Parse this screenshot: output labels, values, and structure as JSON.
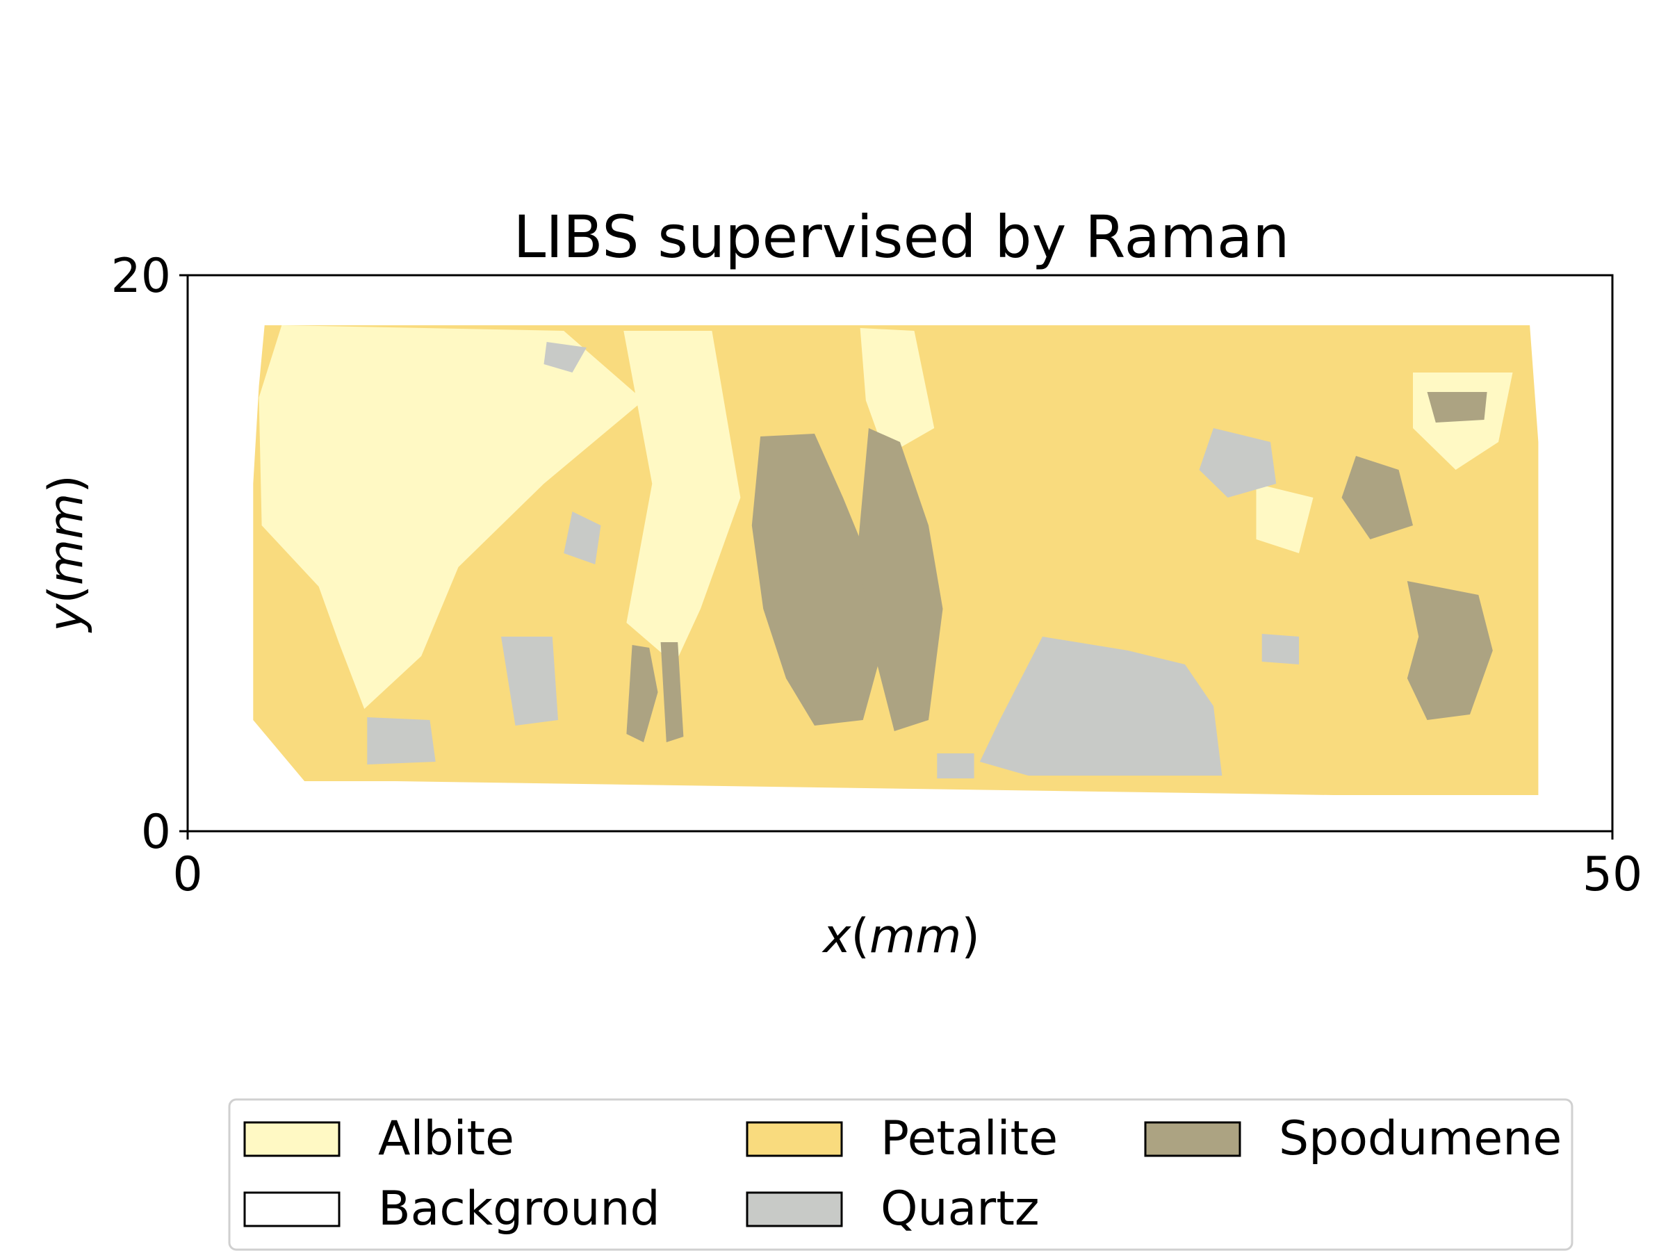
{
  "chart_data": {
    "type": "heatmap",
    "title": "LIBS supervised by Raman",
    "xlabel": {
      "var": "x",
      "unit": "mm",
      "open": "(",
      "close": ")"
    },
    "ylabel": {
      "var": "y",
      "unit": "mm",
      "open": "(",
      "close": ")"
    },
    "xlim": [
      0,
      50
    ],
    "ylim": [
      0,
      20
    ],
    "xticks": [
      {
        "value": 0,
        "label": "0"
      },
      {
        "value": 50,
        "label": "50"
      }
    ],
    "yticks": [
      {
        "value": 0,
        "label": "0"
      },
      {
        "value": 20,
        "label": "20"
      }
    ],
    "grid": false,
    "legend_position": "bottom",
    "classes": [
      {
        "name": "Albite",
        "color": "#fff9c4"
      },
      {
        "name": "Background",
        "color": "#ffffff"
      },
      {
        "name": "Petalite",
        "color": "#f9db7e"
      },
      {
        "name": "Quartz",
        "color": "#c8cac7"
      },
      {
        "name": "Spodumene",
        "color": "#aca382"
      }
    ],
    "regions": [
      {
        "class": "Petalite",
        "polygon": [
          [
            2.7,
            18.2
          ],
          [
            47.1,
            18.2
          ],
          [
            47.4,
            14.0
          ],
          [
            47.4,
            1.3
          ],
          [
            40.2,
            1.3
          ],
          [
            7.3,
            1.8
          ],
          [
            4.1,
            1.8
          ],
          [
            2.3,
            4.0
          ],
          [
            2.3,
            12.5
          ],
          [
            2.5,
            16.0
          ]
        ]
      },
      {
        "class": "Albite",
        "polygon": [
          [
            3.3,
            18.2
          ],
          [
            13.2,
            18.0
          ],
          [
            16.0,
            15.5
          ],
          [
            12.5,
            12.5
          ],
          [
            9.5,
            9.5
          ],
          [
            8.2,
            6.3
          ],
          [
            6.2,
            4.4
          ],
          [
            5.3,
            6.8
          ],
          [
            4.6,
            8.8
          ],
          [
            2.6,
            11.0
          ],
          [
            2.5,
            15.6
          ]
        ]
      },
      {
        "class": "Albite",
        "polygon": [
          [
            15.3,
            18.0
          ],
          [
            18.4,
            18.0
          ],
          [
            19.4,
            12.0
          ],
          [
            18.0,
            8.0
          ],
          [
            17.1,
            6.0
          ],
          [
            15.4,
            7.5
          ],
          [
            16.3,
            12.5
          ]
        ]
      },
      {
        "class": "Albite",
        "polygon": [
          [
            23.6,
            18.1
          ],
          [
            25.5,
            18.0
          ],
          [
            26.2,
            14.5
          ],
          [
            24.5,
            13.5
          ],
          [
            23.8,
            15.5
          ]
        ]
      },
      {
        "class": "Albite",
        "polygon": [
          [
            43.0,
            16.5
          ],
          [
            46.5,
            16.5
          ],
          [
            46.0,
            14.0
          ],
          [
            44.5,
            13.0
          ],
          [
            43.0,
            14.5
          ]
        ]
      },
      {
        "class": "Albite",
        "polygon": [
          [
            37.5,
            12.5
          ],
          [
            39.5,
            12.0
          ],
          [
            39.0,
            10.0
          ],
          [
            37.5,
            10.5
          ]
        ]
      },
      {
        "class": "Spodumene",
        "polygon": [
          [
            20.1,
            14.2
          ],
          [
            22.0,
            14.3
          ],
          [
            23.0,
            12.0
          ],
          [
            24.0,
            9.5
          ],
          [
            24.5,
            7.0
          ],
          [
            23.7,
            4.0
          ],
          [
            22.0,
            3.8
          ],
          [
            21.0,
            5.5
          ],
          [
            20.2,
            8.0
          ],
          [
            19.8,
            11.0
          ]
        ]
      },
      {
        "class": "Spodumene",
        "polygon": [
          [
            23.9,
            14.5
          ],
          [
            25.0,
            14.0
          ],
          [
            26.0,
            11.0
          ],
          [
            26.5,
            8.0
          ],
          [
            26.0,
            4.0
          ],
          [
            24.8,
            3.6
          ],
          [
            24.2,
            6.0
          ],
          [
            23.5,
            10.0
          ]
        ]
      },
      {
        "class": "Spodumene",
        "polygon": [
          [
            15.6,
            6.7
          ],
          [
            16.2,
            6.6
          ],
          [
            16.5,
            5.0
          ],
          [
            16.0,
            3.2
          ],
          [
            15.4,
            3.5
          ]
        ]
      },
      {
        "class": "Spodumene",
        "polygon": [
          [
            16.6,
            6.8
          ],
          [
            17.2,
            6.8
          ],
          [
            17.4,
            3.4
          ],
          [
            16.8,
            3.2
          ]
        ]
      },
      {
        "class": "Spodumene",
        "polygon": [
          [
            42.8,
            9.0
          ],
          [
            45.3,
            8.5
          ],
          [
            45.8,
            6.5
          ],
          [
            45.0,
            4.2
          ],
          [
            43.5,
            4.0
          ],
          [
            42.8,
            5.5
          ],
          [
            43.2,
            7.0
          ]
        ]
      },
      {
        "class": "Spodumene",
        "polygon": [
          [
            41.0,
            13.5
          ],
          [
            42.5,
            13.0
          ],
          [
            43.0,
            11.0
          ],
          [
            41.5,
            10.5
          ],
          [
            40.5,
            12.0
          ]
        ]
      },
      {
        "class": "Spodumene",
        "polygon": [
          [
            43.5,
            15.8
          ],
          [
            45.6,
            15.8
          ],
          [
            45.5,
            14.8
          ],
          [
            43.8,
            14.7
          ]
        ]
      },
      {
        "class": "Quartz",
        "polygon": [
          [
            30.0,
            7.0
          ],
          [
            33.0,
            6.5
          ],
          [
            35.0,
            6.0
          ],
          [
            36.0,
            4.5
          ],
          [
            36.3,
            2.0
          ],
          [
            33.0,
            2.0
          ],
          [
            29.5,
            2.0
          ],
          [
            27.8,
            2.5
          ],
          [
            28.5,
            4.0
          ]
        ]
      },
      {
        "class": "Quartz",
        "polygon": [
          [
            36.0,
            14.5
          ],
          [
            38.0,
            14.0
          ],
          [
            38.2,
            12.5
          ],
          [
            36.5,
            12.0
          ],
          [
            35.5,
            13.0
          ]
        ]
      },
      {
        "class": "Quartz",
        "polygon": [
          [
            11.0,
            7.0
          ],
          [
            12.8,
            7.0
          ],
          [
            13.0,
            4.0
          ],
          [
            11.5,
            3.8
          ]
        ]
      },
      {
        "class": "Quartz",
        "polygon": [
          [
            13.5,
            11.5
          ],
          [
            14.5,
            11.0
          ],
          [
            14.3,
            9.6
          ],
          [
            13.2,
            10.0
          ]
        ]
      },
      {
        "class": "Quartz",
        "polygon": [
          [
            6.3,
            4.1
          ],
          [
            8.5,
            4.0
          ],
          [
            8.7,
            2.5
          ],
          [
            6.3,
            2.4
          ]
        ]
      },
      {
        "class": "Quartz",
        "polygon": [
          [
            37.7,
            7.1
          ],
          [
            39.0,
            7.0
          ],
          [
            39.0,
            6.0
          ],
          [
            37.7,
            6.1
          ]
        ]
      },
      {
        "class": "Quartz",
        "polygon": [
          [
            12.6,
            17.6
          ],
          [
            14.0,
            17.4
          ],
          [
            13.5,
            16.5
          ],
          [
            12.5,
            16.8
          ]
        ]
      },
      {
        "class": "Quartz",
        "polygon": [
          [
            26.3,
            2.8
          ],
          [
            27.6,
            2.8
          ],
          [
            27.6,
            1.9
          ],
          [
            26.3,
            1.9
          ]
        ]
      }
    ]
  }
}
